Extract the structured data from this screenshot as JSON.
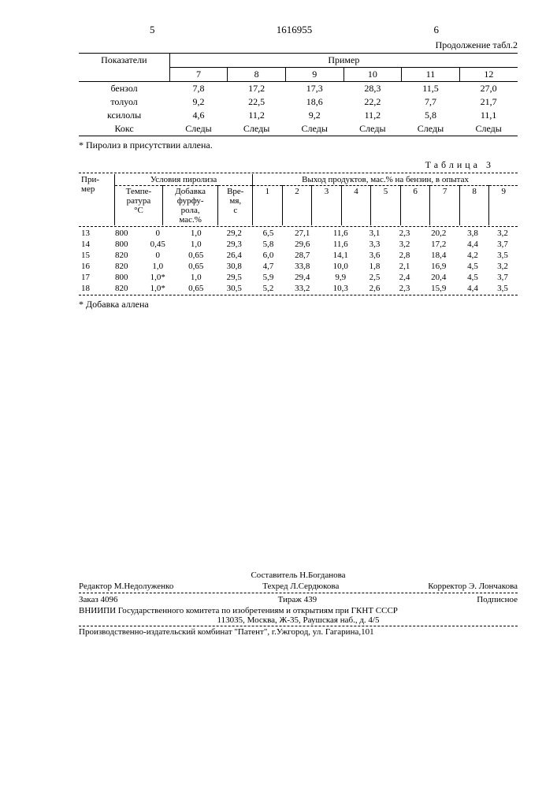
{
  "header": {
    "n5": "5",
    "doc_no": "1616955",
    "n6": "6",
    "cont_label": "Продолжение табл.2"
  },
  "table2": {
    "col_header_main": "Показатели",
    "col_header_group": "Пример",
    "cols": [
      "7",
      "8",
      "9",
      "10",
      "11",
      "12"
    ],
    "rows": [
      {
        "label": "бензол",
        "v": [
          "7,8",
          "17,2",
          "17,3",
          "28,3",
          "11,5",
          "27,0"
        ]
      },
      {
        "label": "толуол",
        "v": [
          "9,2",
          "22,5",
          "18,6",
          "22,2",
          "7,7",
          "21,7"
        ]
      },
      {
        "label": "ксилолы",
        "v": [
          "4,6",
          "11,2",
          "9,2",
          "11,2",
          "5,8",
          "11,1"
        ]
      }
    ],
    "last_row": {
      "label": "Кокс",
      "v": [
        "Следы",
        "Следы",
        "Следы",
        "Следы",
        "Следы",
        "Следы"
      ]
    },
    "footnote": "* Пиролиз в присутствии аллена."
  },
  "table3": {
    "label": "Таблица 3",
    "hdr": {
      "primer": "При-\nмер",
      "usl": "Условия пиролиза",
      "vyhod": "Выход продуктов, мас.% на бензин, в опытах",
      "temp": "Темпе-\nратура\n°С",
      "dob": "Добавка\nфурфу-\nрола,\nмас.%",
      "vrem": "Вре-\nмя,\nс"
    },
    "out_cols": [
      "1",
      "2",
      "3",
      "4",
      "5",
      "6",
      "7",
      "8",
      "9"
    ],
    "rows": [
      {
        "n": "13",
        "t": "800",
        "d": "0",
        "v": "1,0",
        "o": [
          "29,2",
          "6,5",
          "27,1",
          "11,6",
          "3,1",
          "2,3",
          "20,2",
          "3,8",
          "3,2"
        ]
      },
      {
        "n": "14",
        "t": "800",
        "d": "0,45",
        "v": "1,0",
        "o": [
          "29,3",
          "5,8",
          "29,6",
          "11,6",
          "3,3",
          "3,2",
          "17,2",
          "4,4",
          "3,7"
        ]
      },
      {
        "n": "15",
        "t": "820",
        "d": "0",
        "v": "0,65",
        "o": [
          "26,4",
          "6,0",
          "28,7",
          "14,1",
          "3,6",
          "2,8",
          "18,4",
          "4,2",
          "3,5"
        ]
      },
      {
        "n": "16",
        "t": "820",
        "d": "1,0",
        "v": "0,65",
        "o": [
          "30,8",
          "4,7",
          "33,8",
          "10,0",
          "1,8",
          "2,1",
          "16,9",
          "4,5",
          "3,2"
        ]
      },
      {
        "n": "17",
        "t": "800",
        "d": "1,0*",
        "v": "1,0",
        "o": [
          "29,5",
          "5,9",
          "29,4",
          "9,9",
          "2,5",
          "2,4",
          "20,4",
          "4,5",
          "3,7"
        ]
      },
      {
        "n": "18",
        "t": "820",
        "d": "1,0*",
        "v": "0,65",
        "o": [
          "30,5",
          "5,2",
          "33,2",
          "10,3",
          "2,6",
          "2,3",
          "15,9",
          "4,4",
          "3,5"
        ]
      }
    ],
    "footnote": "* Добавка аллена"
  },
  "footer": {
    "sostavitel": "Составитель Н.Богданова",
    "redaktor": "Редактор М.Недолуженко",
    "tehred": "Техред Л.Сердюкова",
    "korrektor": "Корректор Э. Лончакова",
    "zakaz": "Заказ 4096",
    "tirazh": "Тираж 439",
    "podpisnoe": "Подписное",
    "vniipi": "ВНИИПИ Государственного комитета по изобретениям и открытиям при ГКНТ СССР",
    "addr1": "113035, Москва, Ж-35, Раушская наб., д. 4/5",
    "prod": "Производственно-издательский комбинат \"Патент\", г.Ужгород, ул. Гагарина,101"
  }
}
